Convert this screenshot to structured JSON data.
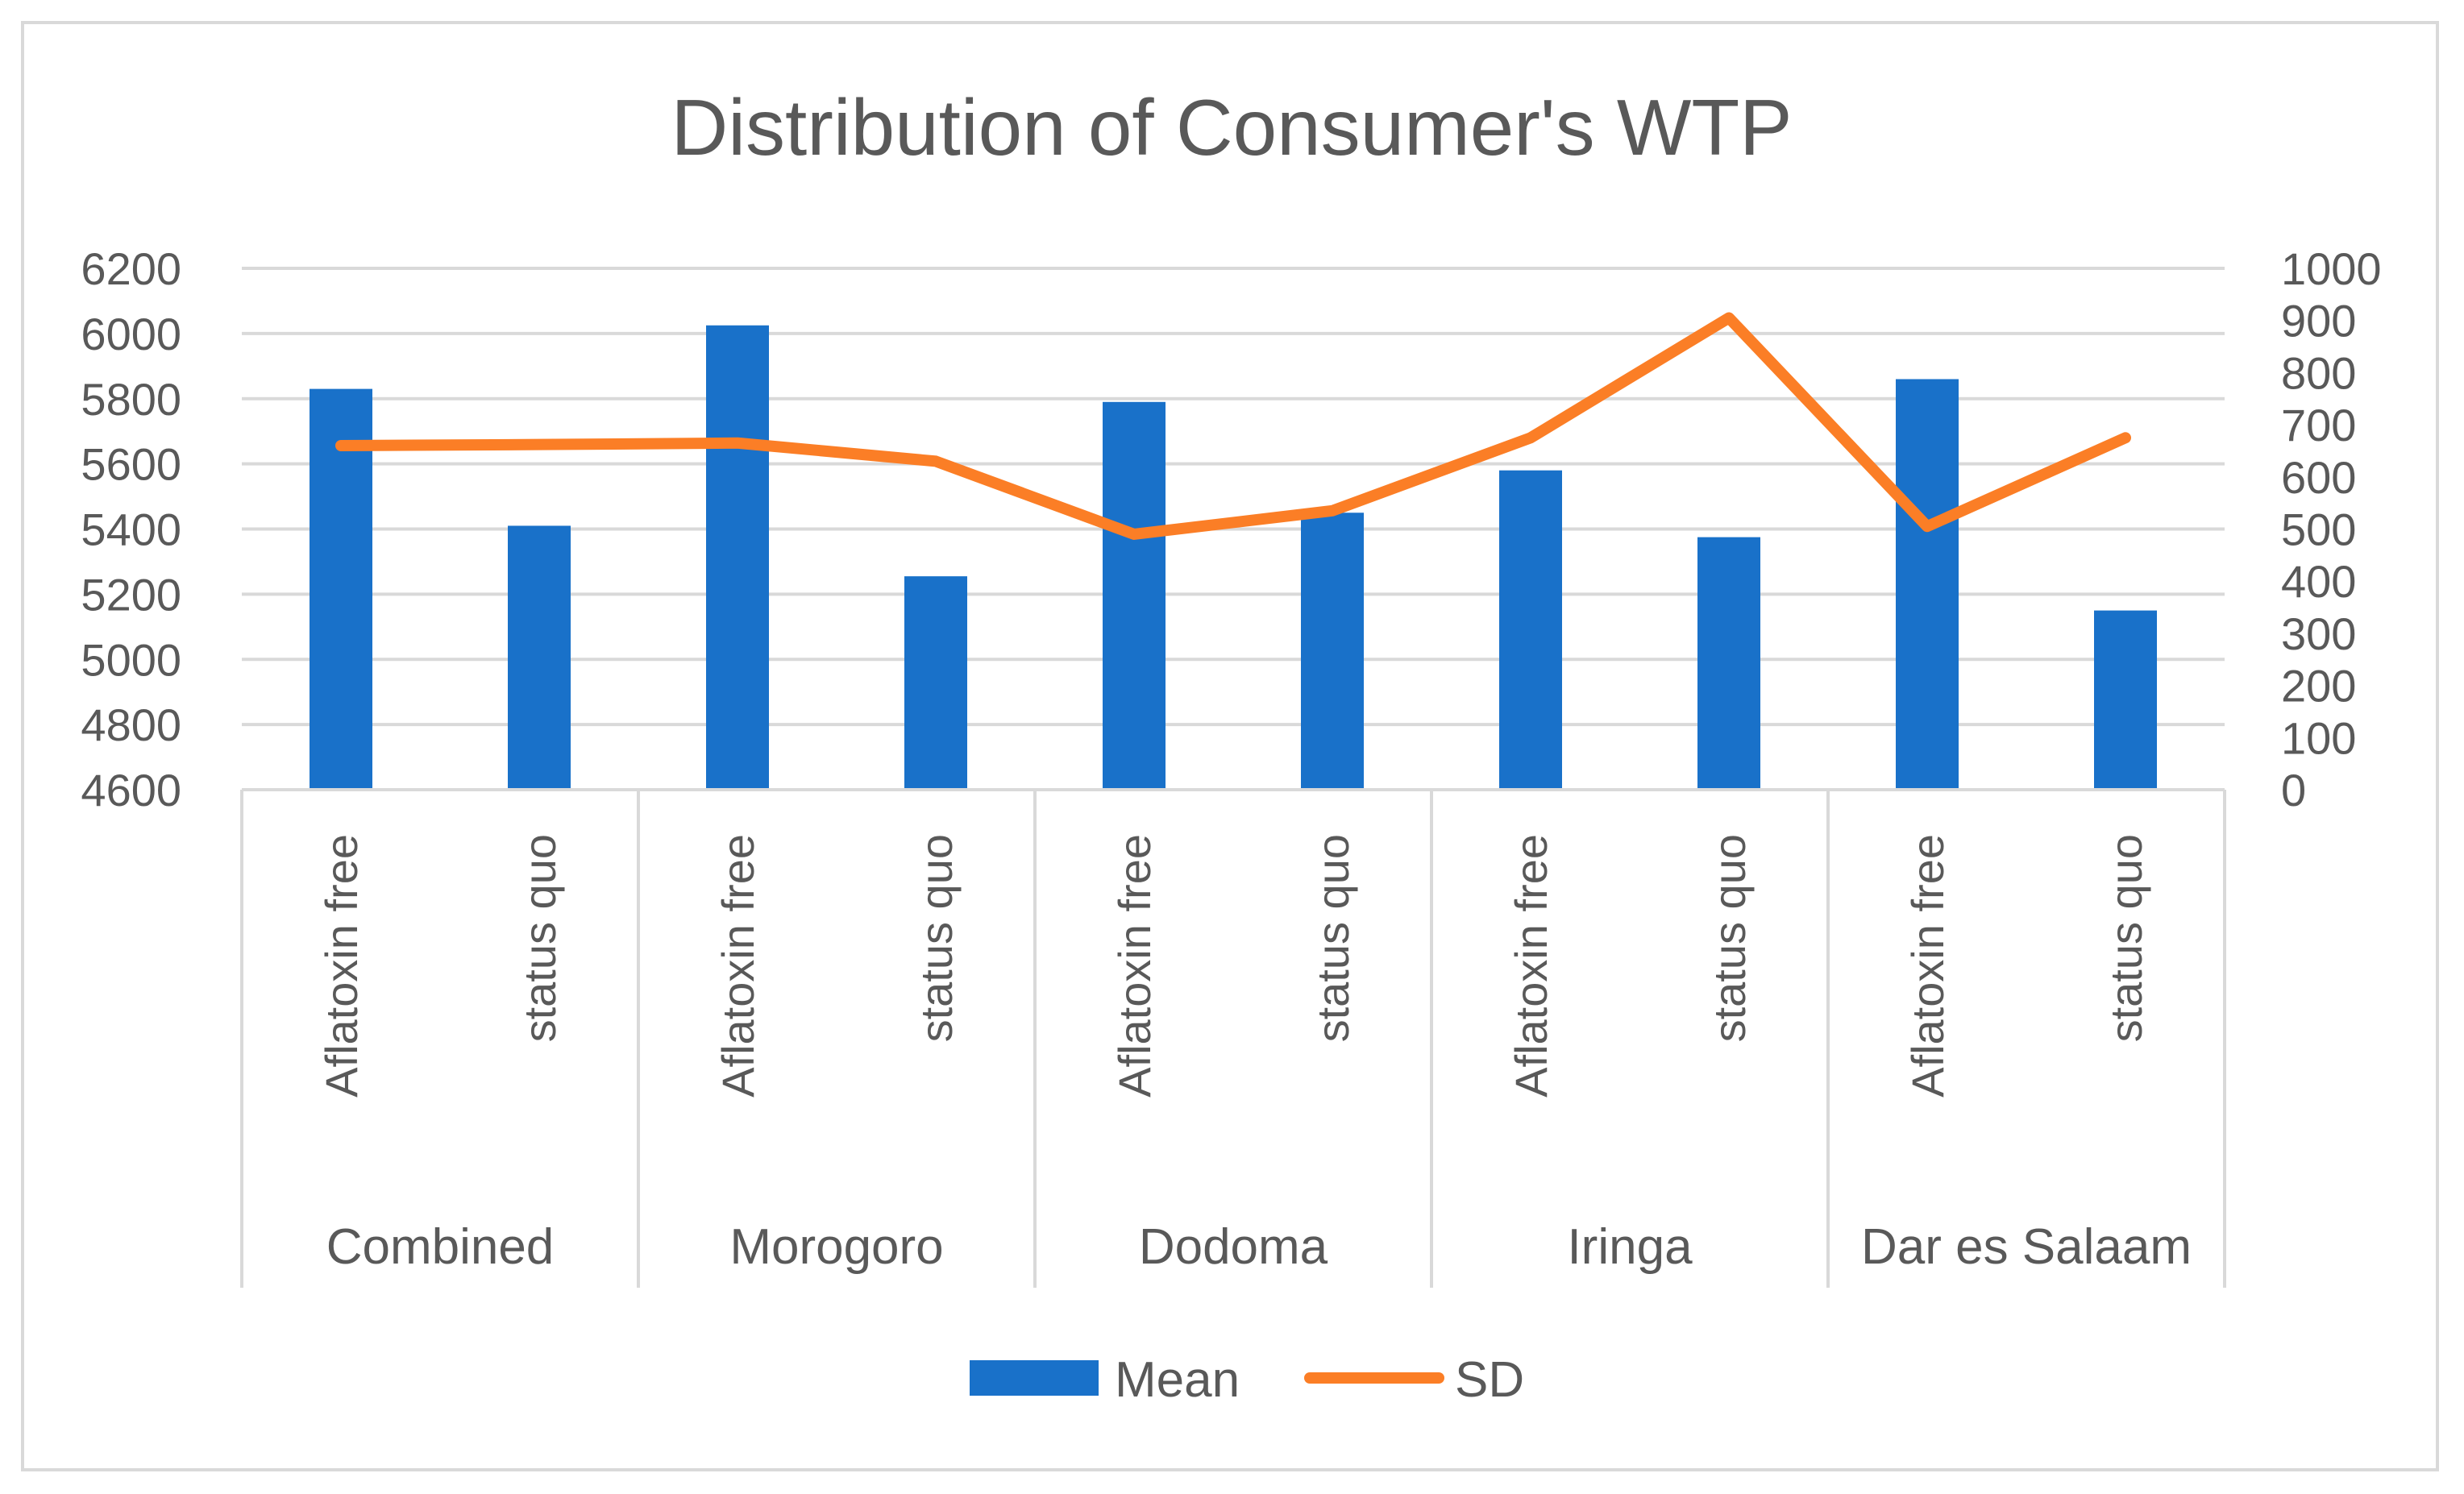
{
  "chart_data": {
    "type": "bar",
    "title": "Distribution of Consumer's WTP",
    "groups": [
      "Combined",
      "Morogoro",
      "Dodoma",
      "Iringa",
      "Dar es Salaam"
    ],
    "subcategories": [
      "Aflatoxin free",
      "status quo"
    ],
    "categories": [
      "Aflatoxin free",
      "status quo",
      "Aflatoxin free",
      "status quo",
      "Aflatoxin free",
      "status quo",
      "Aflatoxin free",
      "status quo",
      "Aflatoxin free",
      "status quo"
    ],
    "series": [
      {
        "name": "Mean",
        "type": "bar",
        "axis": "left",
        "color": "#1971c9",
        "values": [
          5830,
          5410,
          6025,
          5255,
          5790,
          5450,
          5580,
          5375,
          5860,
          5150
        ]
      },
      {
        "name": "SD",
        "type": "line",
        "axis": "right",
        "color": "#fb7e26",
        "values": [
          660,
          662,
          665,
          630,
          490,
          535,
          675,
          905,
          505,
          675
        ]
      }
    ],
    "y_left": {
      "min": 4600,
      "max": 6200,
      "step": 200,
      "ticks": [
        "6200",
        "6000",
        "5800",
        "5600",
        "5400",
        "5200",
        "5000",
        "4800",
        "4600"
      ]
    },
    "y_right": {
      "min": 0,
      "max": 1000,
      "step": 100,
      "ticks": [
        "1000",
        "900",
        "800",
        "700",
        "600",
        "500",
        "400",
        "300",
        "200",
        "100",
        "0"
      ]
    },
    "grid": true,
    "legend_position": "bottom-center",
    "legend": [
      "Mean",
      "SD"
    ]
  }
}
